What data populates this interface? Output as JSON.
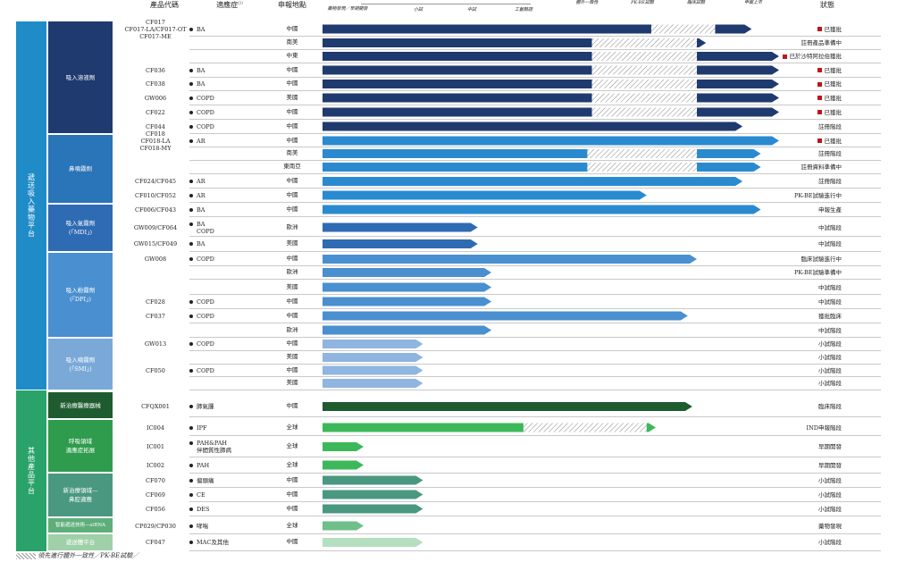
{
  "headers": {
    "product_code": "產品代碼",
    "indication": "適應症",
    "indication_note": "(1)",
    "region": "申報地點",
    "stage_preclinical": "藥物發現／早期開發",
    "stage_small": "小試",
    "stage_pilot": "中試",
    "stage_process": "工藝驗證",
    "stage_invitro": "體外一致性",
    "stage_pkbe": "PK-BE試驗",
    "stage_clinical": "臨床試驗",
    "stage_filing": "申報上市",
    "status": "狀態"
  },
  "platforms": {
    "inhaled": "遞送吸入藥物平台",
    "other": "其他產品平台"
  },
  "categories": [
    {
      "label": "吸入溶液劑",
      "color": "#1f3a6e"
    },
    {
      "label": "鼻噴霧劑",
      "color": "#2a74b8"
    },
    {
      "label": "吸入氣霧劑\n(「MDI」)",
      "color": "#2f6bb3"
    },
    {
      "label": "吸入粉霧劑\n(「DPI」)",
      "color": "#4a8fcf"
    },
    {
      "label": "吸入噴霧劑\n(「SMI」)",
      "color": "#7aa9d8"
    },
    {
      "label": "新治療醫療器械",
      "color": "#1e5c30"
    },
    {
      "label": "呼吸領域\n適應症拓展",
      "color": "#2e9c4c"
    },
    {
      "label": "新治療領域—\n鼻腔適應",
      "color": "#4a9880"
    },
    {
      "label": "智能遞送技術—siRNA",
      "color": "#5fae7a"
    },
    {
      "label": "遞送體平台",
      "color": "#9fd0a8"
    }
  ],
  "rows": [
    {
      "code": "CF017\nCF017-LA/CF017-OT\nCF017-ME",
      "indication": "BA",
      "region": "中國",
      "status": "已獲批",
      "flag": true
    },
    {
      "code": "",
      "indication": "",
      "region": "南美",
      "status": "註冊產品準備中",
      "flag": false
    },
    {
      "code": "",
      "indication": "",
      "region": "中東",
      "status": "已於沙特阿拉伯獲批",
      "flag": true
    },
    {
      "code": "CF036",
      "indication": "BA",
      "region": "中國",
      "status": "已獲批",
      "flag": true
    },
    {
      "code": "CF038",
      "indication": "BA",
      "region": "中國",
      "status": "已獲批",
      "flag": true
    },
    {
      "code": "GW006",
      "indication": "COPD",
      "region": "美國",
      "status": "已獲批",
      "flag": true
    },
    {
      "code": "CF022",
      "indication": "COPD",
      "region": "中國",
      "status": "已獲批",
      "flag": true
    },
    {
      "code": "CF044",
      "indication": "COPD",
      "region": "中國",
      "status": "註冊階段",
      "flag": false
    },
    {
      "code": "CF018\nCF018-LA\nCF018-MY",
      "indication": "AR",
      "region": "中國",
      "status": "已獲批",
      "flag": true
    },
    {
      "code": "",
      "indication": "",
      "region": "南美",
      "status": "註冊階段",
      "flag": false
    },
    {
      "code": "",
      "indication": "",
      "region": "東南亞",
      "status": "註冊資料準備中",
      "flag": false
    },
    {
      "code": "CF024/CF045",
      "indication": "AR",
      "region": "中國",
      "status": "註冊階段",
      "flag": false
    },
    {
      "code": "CF010/CF052",
      "indication": "AR",
      "region": "中國",
      "status": "PK-BE試驗進行中",
      "flag": false
    },
    {
      "code": "CF006/CF043",
      "indication": "BA",
      "region": "中國",
      "status": "申報生產",
      "flag": false
    },
    {
      "code": "GW009/CF064",
      "indication": "BA\nCOPD",
      "region": "歐洲",
      "status": "中試階段",
      "flag": false
    },
    {
      "code": "GW015/CF049",
      "indication": "BA",
      "region": "美國",
      "status": "中試階段",
      "flag": false
    },
    {
      "code": "GW008",
      "indication": "COPD",
      "region": "中國",
      "status": "臨床試驗進行中",
      "flag": false
    },
    {
      "code": "",
      "indication": "",
      "region": "歐洲",
      "status": "PK-BE試驗準備中",
      "flag": false
    },
    {
      "code": "",
      "indication": "",
      "region": "美國",
      "status": "中試階段",
      "flag": false
    },
    {
      "code": "CF028",
      "indication": "COPD",
      "region": "中國",
      "status": "中試階段",
      "flag": false
    },
    {
      "code": "CF037",
      "indication": "COPD",
      "region": "中國",
      "status": "獲批臨床",
      "flag": false
    },
    {
      "code": "",
      "indication": "",
      "region": "歐洲",
      "status": "中試階段",
      "flag": false
    },
    {
      "code": "GW013",
      "indication": "COPD",
      "region": "中國",
      "status": "小試階段",
      "flag": false
    },
    {
      "code": "",
      "indication": "",
      "region": "美國",
      "status": "小試階段",
      "flag": false
    },
    {
      "code": "CF050",
      "indication": "COPD",
      "region": "中國",
      "status": "小試階段",
      "flag": false
    },
    {
      "code": "",
      "indication": "",
      "region": "美國",
      "status": "小試階段",
      "flag": false
    },
    {
      "code": "CFQX001",
      "indication": "肺氣腫",
      "region": "中國",
      "status": "臨床階段",
      "flag": false
    },
    {
      "code": "IC004",
      "indication": "IPF",
      "region": "全球",
      "status": "IND申報階段",
      "flag": false
    },
    {
      "code": "IC001",
      "indication": "PAH&PAH\n伴間質性肺病",
      "region": "全球",
      "status": "早期開發",
      "flag": false
    },
    {
      "code": "IC002",
      "indication": "PAH",
      "region": "全球",
      "status": "早期開發",
      "flag": false
    },
    {
      "code": "CF070",
      "indication": "偏頭痛",
      "region": "中國",
      "status": "小試階段",
      "flag": false
    },
    {
      "code": "CF069",
      "indication": "CE",
      "region": "中國",
      "status": "小試階段",
      "flag": false
    },
    {
      "code": "CF056",
      "indication": "DES",
      "region": "中國",
      "status": "小試階段",
      "flag": false
    },
    {
      "code": "CP029/CP030",
      "indication": "哮喘",
      "region": "全球",
      "status": "藥物發現",
      "flag": false
    },
    {
      "code": "CF047",
      "indication": "MAC及其他",
      "region": "中國",
      "status": "小試階段",
      "flag": false
    }
  ],
  "progress": [
    {
      "level": 0.94,
      "hatch_from": 0.72,
      "hatch_to": 0.86,
      "color": "#1f3a6e"
    },
    {
      "level": 0.84,
      "hatch_from": 0.59,
      "hatch_to": 0.82,
      "color": "#1f3a6e"
    },
    {
      "level": 1.0,
      "hatch_from": 0.59,
      "hatch_to": 0.82,
      "color": "#1f3a6e"
    },
    {
      "level": 1.0,
      "hatch_from": 0.59,
      "hatch_to": 0.82,
      "color": "#1f3a6e"
    },
    {
      "level": 1.0,
      "hatch_from": 0.59,
      "hatch_to": 0.82,
      "color": "#1f3a6e"
    },
    {
      "level": 1.0,
      "hatch_from": 0.59,
      "hatch_to": 0.82,
      "color": "#1f3a6e"
    },
    {
      "level": 1.0,
      "hatch_from": 0.59,
      "hatch_to": 0.82,
      "color": "#1f3a6e"
    },
    {
      "level": 0.92,
      "hatch_from": 0,
      "hatch_to": 0,
      "color": "#1f3a6e"
    },
    {
      "level": 1.0,
      "hatch_from": 0,
      "hatch_to": 0,
      "color": "#2a8ad0"
    },
    {
      "level": 0.96,
      "hatch_from": 0.58,
      "hatch_to": 0.82,
      "color": "#2a8ad0"
    },
    {
      "level": 0.96,
      "hatch_from": 0.58,
      "hatch_to": 0.82,
      "color": "#2a8ad0"
    },
    {
      "level": 0.92,
      "hatch_from": 0,
      "hatch_to": 0,
      "color": "#2a8ad0"
    },
    {
      "level": 0.71,
      "hatch_from": 0,
      "hatch_to": 0,
      "color": "#2a8ad0"
    },
    {
      "level": 0.96,
      "hatch_from": 0,
      "hatch_to": 0,
      "color": "#2a8ad0"
    },
    {
      "level": 0.34,
      "hatch_from": 0,
      "hatch_to": 0,
      "color": "#2f6bb3"
    },
    {
      "level": 0.34,
      "hatch_from": 0,
      "hatch_to": 0,
      "color": "#2f6bb3"
    },
    {
      "level": 0.82,
      "hatch_from": 0,
      "hatch_to": 0,
      "color": "#4a8fcf"
    },
    {
      "level": 0.37,
      "hatch_from": 0,
      "hatch_to": 0,
      "color": "#4a8fcf"
    },
    {
      "level": 0.37,
      "hatch_from": 0,
      "hatch_to": 0,
      "color": "#4a8fcf"
    },
    {
      "level": 0.37,
      "hatch_from": 0,
      "hatch_to": 0,
      "color": "#4a8fcf"
    },
    {
      "level": 0.8,
      "hatch_from": 0,
      "hatch_to": 0,
      "color": "#4a8fcf"
    },
    {
      "level": 0.37,
      "hatch_from": 0,
      "hatch_to": 0,
      "color": "#4a8fcf"
    },
    {
      "level": 0.22,
      "hatch_from": 0,
      "hatch_to": 0,
      "color": "#8fb5e0"
    },
    {
      "level": 0.22,
      "hatch_from": 0,
      "hatch_to": 0,
      "color": "#8fb5e0"
    },
    {
      "level": 0.22,
      "hatch_from": 0,
      "hatch_to": 0,
      "color": "#8fb5e0"
    },
    {
      "level": 0.22,
      "hatch_from": 0,
      "hatch_to": 0,
      "color": "#8fb5e0"
    },
    {
      "level": 0.81,
      "hatch_from": 0,
      "hatch_to": 0,
      "color": "#1e5c30"
    },
    {
      "level": 0.73,
      "hatch_from": 0.44,
      "hatch_to": 0.71,
      "color": "#3cb85a"
    },
    {
      "level": 0.09,
      "hatch_from": 0,
      "hatch_to": 0,
      "color": "#3cb85a"
    },
    {
      "level": 0.09,
      "hatch_from": 0,
      "hatch_to": 0,
      "color": "#3cb85a"
    },
    {
      "level": 0.22,
      "hatch_from": 0,
      "hatch_to": 0,
      "color": "#4a9880"
    },
    {
      "level": 0.22,
      "hatch_from": 0,
      "hatch_to": 0,
      "color": "#4a9880"
    },
    {
      "level": 0.22,
      "hatch_from": 0,
      "hatch_to": 0,
      "color": "#4a9880"
    },
    {
      "level": 0.09,
      "hatch_from": 0,
      "hatch_to": 0,
      "color": "#6fbf8a"
    },
    {
      "level": 0.22,
      "hatch_from": 0,
      "hatch_to": 0,
      "color": "#b5dfbe"
    }
  ],
  "footnote": "領先進行體外一致性／PK-BE試驗／"
}
